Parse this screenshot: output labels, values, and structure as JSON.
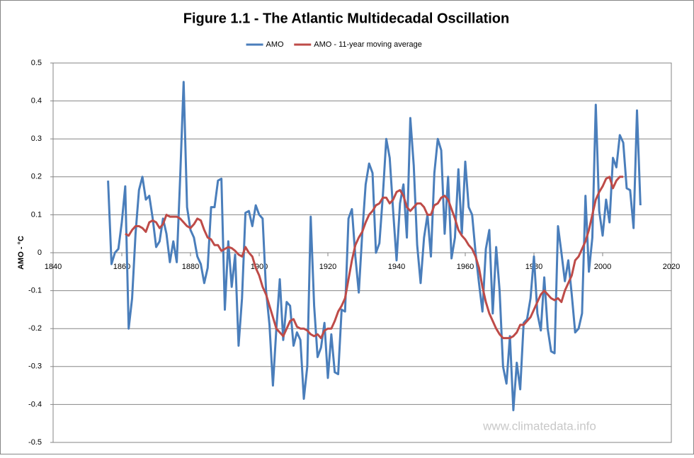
{
  "chart_data": {
    "type": "line",
    "title": "Figure 1.1 - The Atlantic Multidecadal Oscillation",
    "y_label": "AMO - °C",
    "watermark": "www.climatedata.info",
    "legend": "top",
    "grid": true,
    "xlim": [
      1840,
      2020
    ],
    "xticks": [
      1840,
      1860,
      1880,
      1900,
      1920,
      1940,
      1960,
      1980,
      2000,
      2020
    ],
    "ylim": [
      -0.5,
      0.5
    ],
    "yticks": [
      0.5,
      0.4,
      0.3,
      0.2,
      0.1,
      0,
      -0.1,
      -0.2,
      -0.3,
      -0.4,
      -0.5
    ],
    "x": [
      1856,
      1857,
      1858,
      1859,
      1860,
      1861,
      1862,
      1863,
      1864,
      1865,
      1866,
      1867,
      1868,
      1869,
      1870,
      1871,
      1872,
      1873,
      1874,
      1875,
      1876,
      1877,
      1878,
      1879,
      1880,
      1881,
      1882,
      1883,
      1884,
      1885,
      1886,
      1887,
      1888,
      1889,
      1890,
      1891,
      1892,
      1893,
      1894,
      1895,
      1896,
      1897,
      1898,
      1899,
      1900,
      1901,
      1902,
      1903,
      1904,
      1905,
      1906,
      1907,
      1908,
      1909,
      1910,
      1911,
      1912,
      1913,
      1914,
      1915,
      1916,
      1917,
      1918,
      1919,
      1920,
      1921,
      1922,
      1923,
      1924,
      1925,
      1926,
      1927,
      1928,
      1929,
      1930,
      1931,
      1932,
      1933,
      1934,
      1935,
      1936,
      1937,
      1938,
      1939,
      1940,
      1941,
      1942,
      1943,
      1944,
      1945,
      1946,
      1947,
      1948,
      1949,
      1950,
      1951,
      1952,
      1953,
      1954,
      1955,
      1956,
      1957,
      1958,
      1959,
      1960,
      1961,
      1962,
      1963,
      1964,
      1965,
      1966,
      1967,
      1968,
      1969,
      1970,
      1971,
      1972,
      1973,
      1974,
      1975,
      1976,
      1977,
      1978,
      1979,
      1980,
      1981,
      1982,
      1983,
      1984,
      1985,
      1986,
      1987,
      1988,
      1989,
      1990,
      1991,
      1992,
      1993,
      1994,
      1995,
      1996,
      1997,
      1998,
      1999,
      2000,
      2001,
      2002,
      2003,
      2004,
      2005,
      2006,
      2007,
      2008,
      2009,
      2010,
      2011
    ],
    "series": [
      {
        "name": "AMO",
        "color": "#4a7ebb",
        "values": [
          0.19,
          -0.03,
          0.0,
          0.01,
          0.08,
          0.175,
          -0.2,
          -0.12,
          0.05,
          0.165,
          0.2,
          0.14,
          0.15,
          0.09,
          0.015,
          0.03,
          0.09,
          0.05,
          -0.025,
          0.03,
          -0.025,
          0.2,
          0.45,
          0.12,
          0.06,
          0.04,
          -0.01,
          -0.03,
          -0.08,
          -0.04,
          0.12,
          0.12,
          0.19,
          0.195,
          -0.15,
          0.03,
          -0.09,
          -0.005,
          -0.245,
          -0.12,
          0.105,
          0.11,
          0.07,
          0.125,
          0.1,
          0.09,
          -0.1,
          -0.19,
          -0.35,
          -0.2,
          -0.07,
          -0.23,
          -0.13,
          -0.14,
          -0.245,
          -0.21,
          -0.23,
          -0.385,
          -0.3,
          0.095,
          -0.14,
          -0.275,
          -0.25,
          -0.185,
          -0.33,
          -0.215,
          -0.315,
          -0.32,
          -0.15,
          -0.155,
          0.09,
          0.115,
          -0.01,
          -0.105,
          0.05,
          0.18,
          0.235,
          0.21,
          0.0,
          0.025,
          0.15,
          0.3,
          0.25,
          0.11,
          -0.02,
          0.13,
          0.18,
          0.04,
          0.355,
          0.23,
          0.02,
          -0.08,
          0.04,
          0.1,
          -0.01,
          0.21,
          0.3,
          0.27,
          0.05,
          0.2,
          -0.015,
          0.04,
          0.22,
          0.05,
          0.24,
          0.12,
          0.1,
          0.0,
          -0.08,
          -0.155,
          0.01,
          0.06,
          -0.16,
          0.015,
          -0.1,
          -0.3,
          -0.345,
          -0.22,
          -0.415,
          -0.29,
          -0.36,
          -0.185,
          -0.175,
          -0.12,
          -0.01,
          -0.16,
          -0.205,
          -0.065,
          -0.2,
          -0.26,
          -0.265,
          0.07,
          0.0,
          -0.075,
          -0.02,
          -0.11,
          -0.21,
          -0.2,
          -0.16,
          0.15,
          -0.05,
          0.04,
          0.39,
          0.11,
          0.045,
          0.14,
          0.08,
          0.25,
          0.225,
          0.31,
          0.29,
          0.17,
          0.165,
          0.065,
          0.375,
          0.125
        ]
      },
      {
        "name": "AMO - 11-year moving average",
        "color": "#be4b48",
        "values": [
          null,
          null,
          null,
          null,
          null,
          0.05,
          0.045,
          0.06,
          0.07,
          0.07,
          0.065,
          0.055,
          0.08,
          0.085,
          0.08,
          0.065,
          0.075,
          0.1,
          0.095,
          0.095,
          0.095,
          0.09,
          0.08,
          0.07,
          0.065,
          0.075,
          0.09,
          0.085,
          0.06,
          0.04,
          0.035,
          0.02,
          0.02,
          0.005,
          0.01,
          0.015,
          0.012,
          0.005,
          -0.005,
          -0.01,
          0.015,
          0.0,
          -0.01,
          -0.04,
          -0.06,
          -0.09,
          -0.11,
          -0.14,
          -0.17,
          -0.2,
          -0.21,
          -0.22,
          -0.2,
          -0.18,
          -0.175,
          -0.195,
          -0.2,
          -0.2,
          -0.205,
          -0.215,
          -0.22,
          -0.215,
          -0.225,
          -0.205,
          -0.2,
          -0.2,
          -0.18,
          -0.155,
          -0.14,
          -0.12,
          -0.07,
          -0.02,
          0.02,
          0.04,
          0.055,
          0.08,
          0.1,
          0.11,
          0.125,
          0.13,
          0.145,
          0.145,
          0.13,
          0.14,
          0.16,
          0.165,
          0.15,
          0.12,
          0.11,
          0.12,
          0.13,
          0.13,
          0.12,
          0.1,
          0.1,
          0.125,
          0.13,
          0.145,
          0.15,
          0.14,
          0.115,
          0.09,
          0.06,
          0.045,
          0.035,
          0.02,
          0.01,
          -0.01,
          -0.04,
          -0.09,
          -0.13,
          -0.16,
          -0.18,
          -0.2,
          -0.215,
          -0.225,
          -0.225,
          -0.225,
          -0.22,
          -0.21,
          -0.19,
          -0.19,
          -0.18,
          -0.17,
          -0.15,
          -0.13,
          -0.11,
          -0.1,
          -0.11,
          -0.12,
          -0.125,
          -0.12,
          -0.13,
          -0.1,
          -0.08,
          -0.06,
          -0.02,
          -0.01,
          0.01,
          0.03,
          0.06,
          0.1,
          0.14,
          0.16,
          0.175,
          0.195,
          0.2,
          0.17,
          0.19,
          0.2,
          0.2,
          null,
          null,
          null,
          null,
          null
        ]
      }
    ]
  }
}
